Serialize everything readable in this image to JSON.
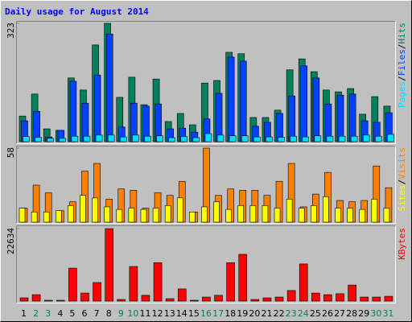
{
  "chart_data": [
    {
      "type": "bar",
      "title": "Daily usage for August 2014",
      "legend_separator": "/",
      "ylim": [
        0,
        323
      ],
      "yticks": [
        323
      ],
      "series": [
        {
          "name": "Hits",
          "color": "#00805c",
          "values": [
            70,
            130,
            35,
            31,
            174,
            141,
            264,
            323,
            121,
            176,
            101,
            171,
            55,
            77,
            46,
            160,
            167,
            244,
            240,
            66,
            66,
            86,
            196,
            226,
            191,
            141,
            136,
            145,
            75,
            123,
            97
          ]
        },
        {
          "name": "Files",
          "color": "#0040ff",
          "values": [
            57,
            83,
            13,
            31,
            165,
            105,
            182,
            294,
            40,
            105,
            97,
            103,
            35,
            37,
            26,
            62,
            132,
            231,
            220,
            42,
            53,
            77,
            125,
            207,
            174,
            103,
            127,
            130,
            57,
            53,
            79
          ]
        },
        {
          "name": "Pages",
          "color": "#00e0ff",
          "values": [
            14,
            12,
            9,
            9,
            15,
            15,
            18,
            18,
            13,
            18,
            15,
            16,
            11,
            14,
            11,
            22,
            18,
            16,
            16,
            13,
            13,
            12,
            15,
            13,
            16,
            15,
            15,
            15,
            18,
            15,
            20
          ]
        }
      ]
    },
    {
      "type": "bar",
      "legend_separator": "/",
      "ylim": [
        0,
        58
      ],
      "yticks": [
        58
      ],
      "series": [
        {
          "name": "Visits",
          "color": "#ff8000",
          "values": [
            11,
            29,
            23,
            9,
            16,
            40,
            46,
            18,
            26,
            25,
            11,
            23,
            21,
            32,
            8,
            58,
            21,
            26,
            25,
            25,
            21,
            32,
            46,
            12,
            22,
            39,
            17,
            16,
            17,
            44,
            27
          ]
        },
        {
          "name": "Sites",
          "color": "#ffff00",
          "values": [
            11,
            8,
            8,
            9,
            13,
            21,
            19,
            12,
            10,
            11,
            10,
            11,
            13,
            19,
            8,
            12,
            16,
            10,
            13,
            13,
            13,
            11,
            18,
            11,
            13,
            20,
            11,
            11,
            10,
            18,
            11
          ]
        }
      ]
    },
    {
      "type": "bar",
      "ylim": [
        0,
        22634
      ],
      "yticks": [
        22634
      ],
      "categories": [
        "1",
        "2",
        "3",
        "4",
        "5",
        "6",
        "7",
        "8",
        "9",
        "10",
        "11",
        "12",
        "13",
        "14",
        "15",
        "16",
        "17",
        "18",
        "19",
        "20",
        "21",
        "22",
        "23",
        "24",
        "25",
        "26",
        "27",
        "28",
        "29",
        "30",
        "31"
      ],
      "category_colors": [
        "#000000",
        "#00805c",
        "#00805c",
        "#000000",
        "#000000",
        "#000000",
        "#000000",
        "#000000",
        "#00805c",
        "#00805c",
        "#000000",
        "#000000",
        "#000000",
        "#000000",
        "#000000",
        "#00805c",
        "#00805c",
        "#000000",
        "#000000",
        "#000000",
        "#000000",
        "#000000",
        "#00805c",
        "#00805c",
        "#000000",
        "#000000",
        "#000000",
        "#000000",
        "#000000",
        "#00805c",
        "#00805c"
      ],
      "series": [
        {
          "name": "KBytes",
          "color": "#ff0000",
          "values": [
            1000,
            2000,
            250,
            250,
            10300,
            2500,
            5800,
            22634,
            500,
            10800,
            1800,
            12000,
            750,
            3800,
            250,
            1250,
            1800,
            12000,
            14600,
            500,
            1000,
            1250,
            3300,
            11600,
            2500,
            2000,
            2300,
            5000,
            1250,
            1250,
            1500
          ]
        }
      ]
    }
  ]
}
